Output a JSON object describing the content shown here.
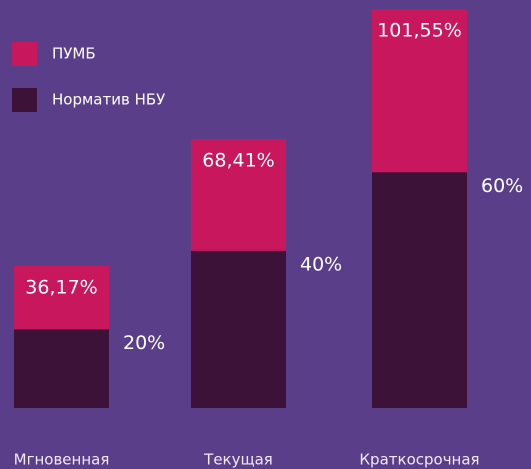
{
  "chart_data": {
    "type": "bar",
    "categories": [
      "Мгновенная",
      "Текущая",
      "Краткосрочная"
    ],
    "series": [
      {
        "name": "ПУМБ",
        "color": "#c8175d",
        "values": [
          36.17,
          68.41,
          101.55
        ],
        "value_labels": [
          "36,17%",
          "68,41%",
          "101,55%"
        ]
      },
      {
        "name": "Норматив НБУ",
        "color": "#3d1238",
        "values": [
          20,
          40,
          60
        ],
        "value_labels": [
          "20%",
          "40%",
          "60%"
        ]
      }
    ]
  }
}
